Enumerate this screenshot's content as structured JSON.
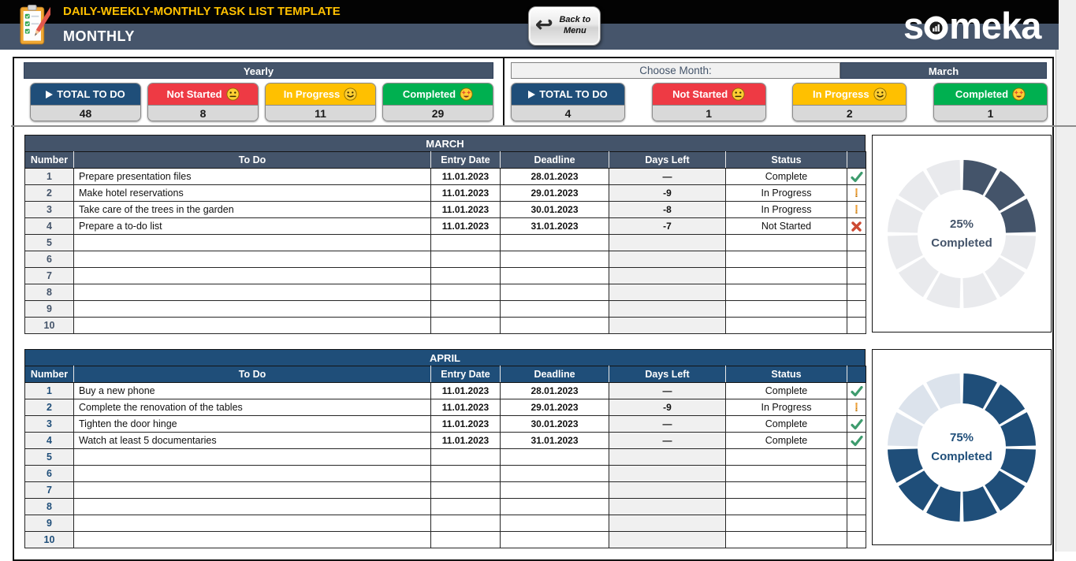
{
  "header": {
    "app_title": "DAILY-WEEKLY-MONTHLY TASK LIST TEMPLATE",
    "page_title": "MONTHLY",
    "back_button_line1": "Back to",
    "back_button_line2": "Menu",
    "logo_text_start": "s",
    "logo_text_end": "meka"
  },
  "summary": {
    "yearly": {
      "title": "Yearly",
      "cards": [
        {
          "label": "TOTAL TO DO",
          "value": "48",
          "color": "#1F4E79",
          "icon": "play-icon"
        },
        {
          "label": "Not Started",
          "value": "8",
          "color": "#EE3A44",
          "icon": "neutral-face-icon"
        },
        {
          "label": "In Progress",
          "value": "11",
          "color": "#FFC000",
          "icon": "smiley-face-icon"
        },
        {
          "label": "Completed",
          "value": "29",
          "color": "#00B050",
          "icon": "star-struck-face-icon"
        }
      ]
    },
    "monthly": {
      "choose_label": "Choose Month:",
      "selected_month": "March",
      "cards": [
        {
          "label": "TOTAL TO DO",
          "value": "4",
          "color": "#1F4E79",
          "icon": "play-icon"
        },
        {
          "label": "Not Started",
          "value": "1",
          "color": "#EE3A44",
          "icon": "neutral-face-icon"
        },
        {
          "label": "In Progress",
          "value": "2",
          "color": "#FFC000",
          "icon": "smiley-face-icon"
        },
        {
          "label": "Completed",
          "value": "1",
          "color": "#00B050",
          "icon": "star-struck-face-icon"
        }
      ]
    }
  },
  "tables": [
    {
      "id": "march",
      "title": "MARCH",
      "theme_color": "#44546A",
      "columns": [
        "Number",
        "To Do",
        "Entry Date",
        "Deadline",
        "Days Left",
        "Status"
      ],
      "rows": [
        {
          "number": "1",
          "todo": "Prepare presentation files",
          "entry": "11.01.2023",
          "deadline": "28.01.2023",
          "days_left": "—",
          "status": "Complete",
          "icon": "check"
        },
        {
          "number": "2",
          "todo": "Make hotel reservations",
          "entry": "11.01.2023",
          "deadline": "29.01.2023",
          "days_left": "-9",
          "status": "In Progress",
          "icon": "exclaim"
        },
        {
          "number": "3",
          "todo": "Take care of the trees in the garden",
          "entry": "11.01.2023",
          "deadline": "30.01.2023",
          "days_left": "-8",
          "status": "In Progress",
          "icon": "exclaim"
        },
        {
          "number": "4",
          "todo": "Prepare a to-do list",
          "entry": "11.01.2023",
          "deadline": "31.01.2023",
          "days_left": "-7",
          "status": "Not Started",
          "icon": "cross"
        },
        {
          "number": "5",
          "todo": "",
          "entry": "",
          "deadline": "",
          "days_left": "",
          "status": "",
          "icon": ""
        },
        {
          "number": "6",
          "todo": "",
          "entry": "",
          "deadline": "",
          "days_left": "",
          "status": "",
          "icon": ""
        },
        {
          "number": "7",
          "todo": "",
          "entry": "",
          "deadline": "",
          "days_left": "",
          "status": "",
          "icon": ""
        },
        {
          "number": "8",
          "todo": "",
          "entry": "",
          "deadline": "",
          "days_left": "",
          "status": "",
          "icon": ""
        },
        {
          "number": "9",
          "todo": "",
          "entry": "",
          "deadline": "",
          "days_left": "",
          "status": "",
          "icon": ""
        },
        {
          "number": "10",
          "todo": "",
          "entry": "",
          "deadline": "",
          "days_left": "",
          "status": "",
          "icon": ""
        }
      ]
    },
    {
      "id": "april",
      "title": "APRIL",
      "theme_color": "#1F4E79",
      "columns": [
        "Number",
        "To Do",
        "Entry Date",
        "Deadline",
        "Days Left",
        "Status"
      ],
      "rows": [
        {
          "number": "1",
          "todo": "Buy a new phone",
          "entry": "11.01.2023",
          "deadline": "28.01.2023",
          "days_left": "—",
          "status": "Complete",
          "icon": "check"
        },
        {
          "number": "2",
          "todo": "Complete the renovation of the tables",
          "entry": "11.01.2023",
          "deadline": "29.01.2023",
          "days_left": "-9",
          "status": "In Progress",
          "icon": "exclaim"
        },
        {
          "number": "3",
          "todo": "Tighten the door hinge",
          "entry": "11.01.2023",
          "deadline": "30.01.2023",
          "days_left": "—",
          "status": "Complete",
          "icon": "check"
        },
        {
          "number": "4",
          "todo": "Watch at least 5 documentaries",
          "entry": "11.01.2023",
          "deadline": "31.01.2023",
          "days_left": "—",
          "status": "Complete",
          "icon": "check"
        },
        {
          "number": "5",
          "todo": "",
          "entry": "",
          "deadline": "",
          "days_left": "",
          "status": "",
          "icon": ""
        },
        {
          "number": "6",
          "todo": "",
          "entry": "",
          "deadline": "",
          "days_left": "",
          "status": "",
          "icon": ""
        },
        {
          "number": "7",
          "todo": "",
          "entry": "",
          "deadline": "",
          "days_left": "",
          "status": "",
          "icon": ""
        },
        {
          "number": "8",
          "todo": "",
          "entry": "",
          "deadline": "",
          "days_left": "",
          "status": "",
          "icon": ""
        },
        {
          "number": "9",
          "todo": "",
          "entry": "",
          "deadline": "",
          "days_left": "",
          "status": "",
          "icon": ""
        },
        {
          "number": "10",
          "todo": "",
          "entry": "",
          "deadline": "",
          "days_left": "",
          "status": "",
          "icon": ""
        }
      ]
    }
  ],
  "chart_data": [
    {
      "type": "pie",
      "id": "march",
      "percent": 25,
      "label": "25%",
      "sublabel": "Completed",
      "segments_total": 12,
      "segments_filled": 3,
      "filled_color": "#44546A",
      "empty_color": "#E9EAED"
    },
    {
      "type": "pie",
      "id": "april",
      "percent": 75,
      "label": "75%",
      "sublabel": "Completed",
      "segments_total": 12,
      "segments_filled": 9,
      "filled_color": "#1F4E79",
      "empty_color": "#DCE3EC"
    }
  ]
}
